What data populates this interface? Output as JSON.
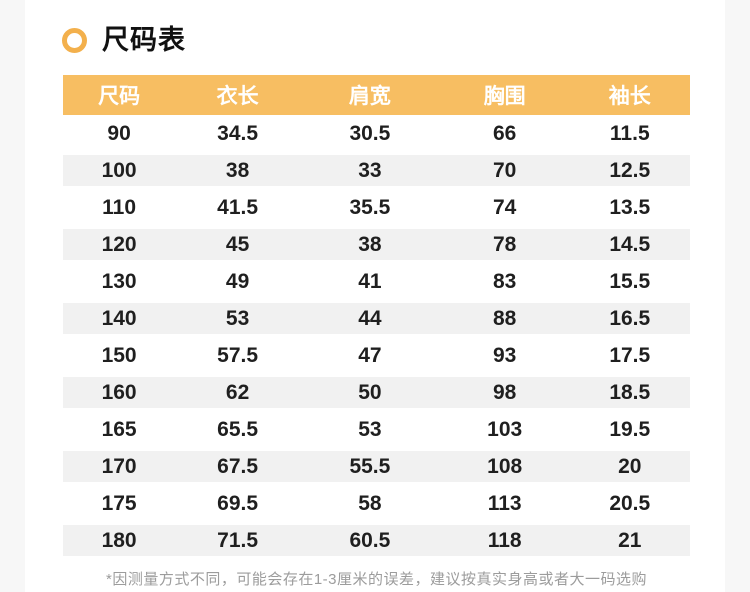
{
  "colors": {
    "accent": "#F7BE62",
    "bullet": "#F3B04C",
    "stripe": "#F1F1F1",
    "header_text": "#FFFFFF",
    "cell_text": "#1F1F1F",
    "title_text": "#111111",
    "note_text": "#9C9C9C",
    "page_bg": "#F7F7F7",
    "card_bg": "#FFFFFF"
  },
  "section": {
    "title": "尺码表"
  },
  "chart_data": {
    "type": "table",
    "title": "尺码表",
    "columns": [
      "尺码",
      "衣长",
      "肩宽",
      "胸围",
      "袖长"
    ],
    "rows": [
      [
        "90",
        "34.5",
        "30.5",
        "66",
        "11.5"
      ],
      [
        "100",
        "38",
        "33",
        "70",
        "12.5"
      ],
      [
        "110",
        "41.5",
        "35.5",
        "74",
        "13.5"
      ],
      [
        "120",
        "45",
        "38",
        "78",
        "14.5"
      ],
      [
        "130",
        "49",
        "41",
        "83",
        "15.5"
      ],
      [
        "140",
        "53",
        "44",
        "88",
        "16.5"
      ],
      [
        "150",
        "57.5",
        "47",
        "93",
        "17.5"
      ],
      [
        "160",
        "62",
        "50",
        "98",
        "18.5"
      ],
      [
        "165",
        "65.5",
        "53",
        "103",
        "19.5"
      ],
      [
        "170",
        "67.5",
        "55.5",
        "108",
        "20"
      ],
      [
        "175",
        "69.5",
        "58",
        "113",
        "20.5"
      ],
      [
        "180",
        "71.5",
        "60.5",
        "118",
        "21"
      ]
    ]
  },
  "footnote": {
    "text": "*因测量方式不同，可能会存在1-3厘米的误差，建议按真实身高或者大一码选购"
  }
}
